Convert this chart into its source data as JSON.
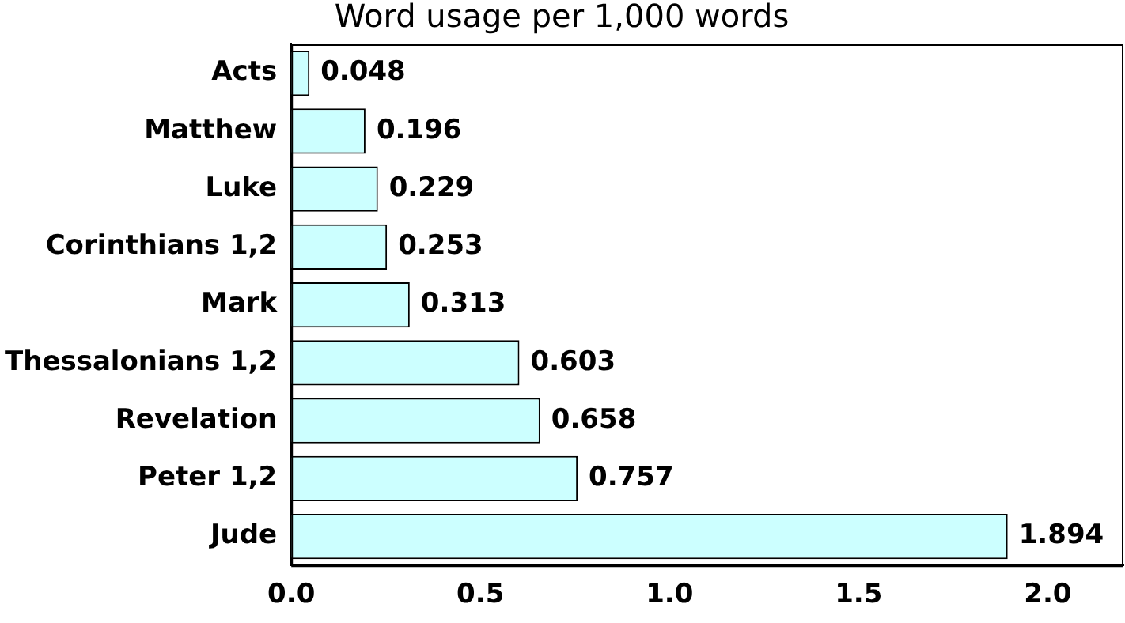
{
  "chart_data": {
    "type": "bar",
    "orientation": "horizontal",
    "title": "Word usage per 1,000 words",
    "categories": [
      "Acts",
      "Matthew",
      "Luke",
      "Corinthians 1,2",
      "Mark",
      "Thessalonians 1,2",
      "Revelation",
      "Peter 1,2",
      "Jude"
    ],
    "values": [
      0.048,
      0.196,
      0.229,
      0.253,
      0.313,
      0.603,
      0.658,
      0.757,
      1.894
    ],
    "color": "#ccffff",
    "xlim": [
      0,
      2.2
    ],
    "xticks": [
      {
        "value": 0,
        "label": "0.0"
      },
      {
        "value": 0.5,
        "label": "0.5"
      },
      {
        "value": 1,
        "label": "1.0"
      },
      {
        "value": 1.5,
        "label": "1.5"
      },
      {
        "value": 2,
        "label": "2.0"
      }
    ],
    "data_labels": true,
    "grid": false,
    "legend": false
  }
}
